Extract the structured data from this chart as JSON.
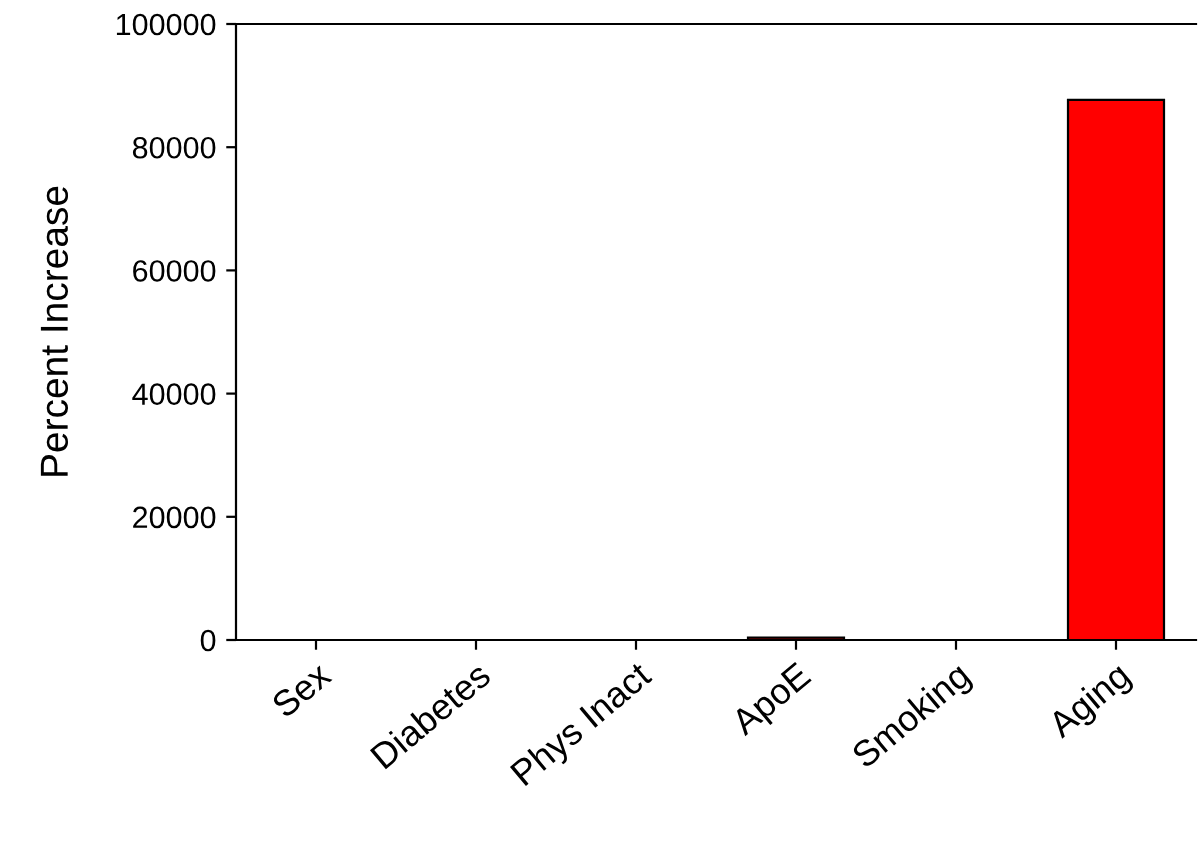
{
  "chart_data": {
    "type": "bar",
    "ylabel": "Percent Increase",
    "categories": [
      "Sex",
      "Diabetes",
      "Phys Inact",
      "ApoE",
      "Smoking",
      "Aging"
    ],
    "values": [
      null,
      null,
      null,
      400,
      null,
      87700
    ],
    "color": "#ff0000",
    "ylim": [
      0,
      100000
    ],
    "yticks": [
      0,
      20000,
      40000,
      60000,
      80000,
      100000
    ],
    "grid": false
  }
}
